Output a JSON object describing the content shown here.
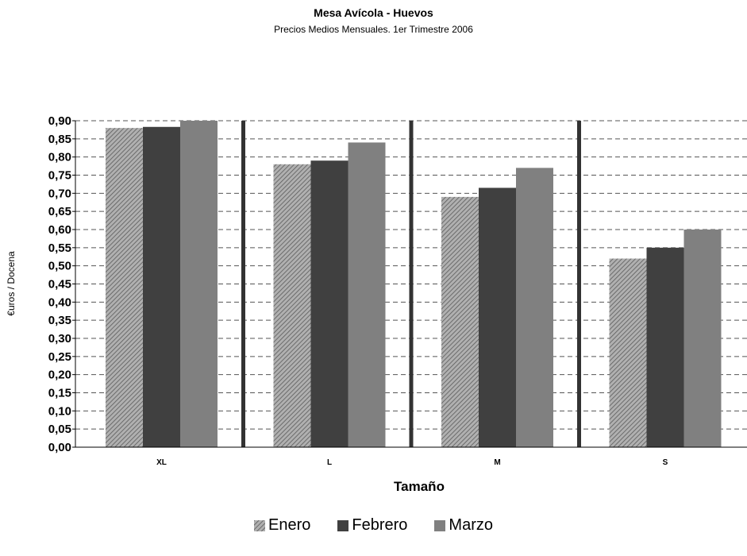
{
  "chart_data": {
    "type": "bar",
    "title": "Mesa Avícola - Huevos",
    "subtitle": "Precios Medios Mensuales. 1er Trimestre 2006",
    "xlabel": "Tamaño",
    "ylabel": "€uros / Docena",
    "categories": [
      "XL",
      "L",
      "M",
      "S"
    ],
    "series": [
      {
        "name": "Enero",
        "values": [
          0.88,
          0.78,
          0.69,
          0.52
        ],
        "color": "#a9a9a9",
        "pattern": "diagonal-hatch"
      },
      {
        "name": "Febrero",
        "values": [
          0.883,
          0.79,
          0.715,
          0.55
        ],
        "color": "#404040"
      },
      {
        "name": "Marzo",
        "values": [
          0.9,
          0.84,
          0.77,
          0.6
        ],
        "color": "#808080"
      }
    ],
    "ylim": [
      0,
      0.9
    ],
    "yticks": [
      "0,00",
      "0,05",
      "0,10",
      "0,15",
      "0,20",
      "0,25",
      "0,30",
      "0,35",
      "0,40",
      "0,45",
      "0,50",
      "0,55",
      "0,60",
      "0,65",
      "0,70",
      "0,75",
      "0,80",
      "0,85",
      "0,90"
    ],
    "ystep": 0.05,
    "grid": true,
    "legend_position": "bottom"
  }
}
